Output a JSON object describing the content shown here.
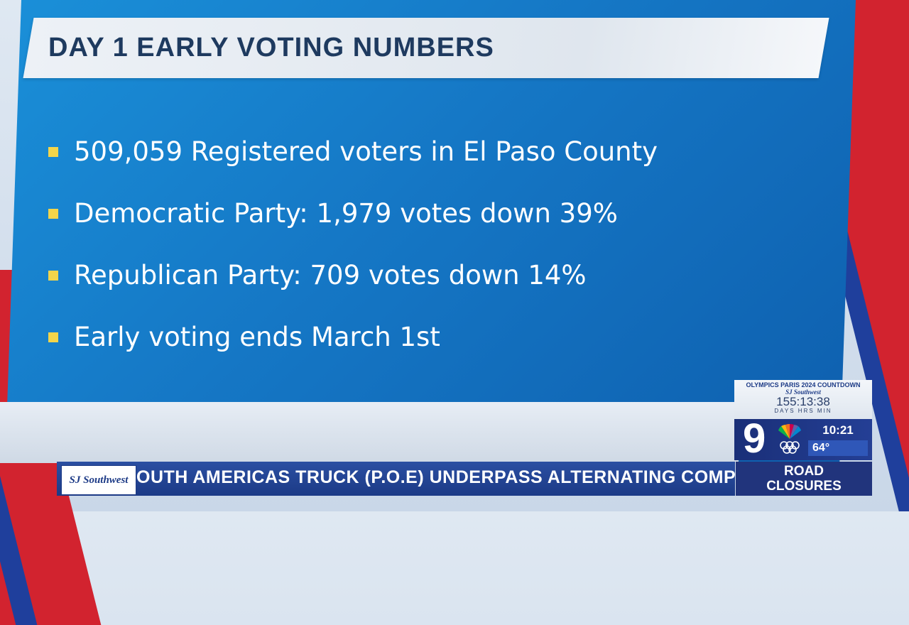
{
  "headline": "DAY 1 EARLY VOTING NUMBERS",
  "bullets": [
    "509,059 Registered voters in El Paso County",
    "Democratic Party: 1,979 votes down 39%",
    "Republican Party: 709 votes down 14%",
    "Early voting ends March 1st"
  ],
  "countdown": {
    "title": "OLYMPICS PARIS 2024 COUNTDOWN",
    "sponsor": "SJ Southwest",
    "time": "155:13:38",
    "units": "DAYS HRS MIN"
  },
  "station": {
    "channel": "9",
    "time": "10:21",
    "temperature": "64°"
  },
  "ticker": {
    "sponsor": "SJ Southwest",
    "text": "OUTH AMERICAS TRUCK (P.O.E) UNDERPASS ALTERNATING COMPLETE",
    "category_line1": "ROAD",
    "category_line2": "CLOSURES"
  },
  "colors": {
    "panel_blue": "#1577c5",
    "bullet_yellow": "#f3d54a",
    "title_navy": "#1e3a5f",
    "ticker_blue": "#1c3a86",
    "accent_red": "#d2232f"
  }
}
